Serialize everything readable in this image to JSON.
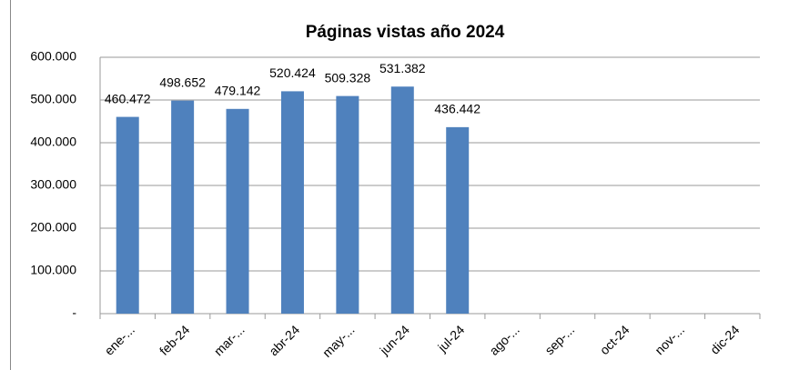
{
  "chart_data": {
    "type": "bar",
    "title": "Páginas vistas año 2024",
    "categories": [
      "ene-...",
      "feb-24",
      "mar-...",
      "abr-24",
      "may-...",
      "jun-24",
      "jul-24",
      "ago-...",
      "sep-...",
      "oct-24",
      "nov-...",
      "dic-24"
    ],
    "values": [
      460472,
      498652,
      479142,
      520424,
      509328,
      531382,
      436442,
      null,
      null,
      null,
      null,
      null
    ],
    "value_labels": [
      "460.472",
      "498.652",
      "479.142",
      "520.424",
      "509.328",
      "531.382",
      "436.442",
      null,
      null,
      null,
      null,
      null
    ],
    "color": "#4f81bd",
    "ylim": [
      0,
      600000
    ],
    "yticks": [
      {
        "value": 0,
        "label": "-"
      },
      {
        "value": 100000,
        "label": "100.000"
      },
      {
        "value": 200000,
        "label": "200.000"
      },
      {
        "value": 300000,
        "label": "300.000"
      },
      {
        "value": 400000,
        "label": "400.000"
      },
      {
        "value": 500000,
        "label": "500.000"
      },
      {
        "value": 600000,
        "label": "600.000"
      }
    ],
    "grid": true
  }
}
